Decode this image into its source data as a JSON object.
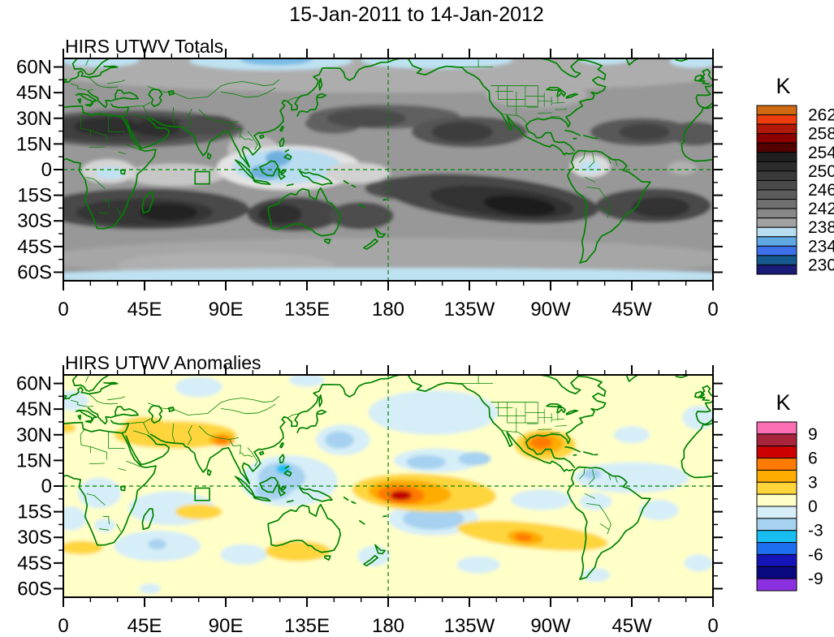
{
  "chart_data": {
    "type": "heatmap",
    "title": "15-Jan-2011 to 14-Jan-2012",
    "projection": "cylindrical equidistant, lon 0E..360E left-to-right, lat 65N..65S top-to-bottom",
    "lon_range": [
      0,
      360
    ],
    "lat_range": [
      -65,
      65
    ],
    "x_tick_labels": [
      "0",
      "45E",
      "90E",
      "135E",
      "180",
      "135W",
      "90W",
      "45W",
      "0"
    ],
    "y_tick_labels": [
      "60N",
      "45N",
      "30N",
      "15N",
      "0",
      "15S",
      "30S",
      "45S",
      "60S"
    ],
    "map_line_color": "#008200",
    "grid": {
      "equator_dashed": true,
      "dateline_dashed": true
    },
    "target_box_lonlat": {
      "lon_min": 73,
      "lon_max": 81,
      "lat_min": -8.4,
      "lat_max": -1.2
    },
    "feature_format": "ellipse: [lon_deg_east, lat_deg, rx_deg_lon, ry_deg_lat, fill_color, rotation_deg(optional)] - approximate contour-fill regions read from the plot",
    "panels": [
      {
        "title": "HIRS UTWV Totals",
        "units": "K",
        "colorbar": {
          "title": "K",
          "tick_labels": [
            "262",
            "258",
            "254",
            "250",
            "246",
            "242",
            "238",
            "234",
            "230"
          ],
          "k_per_box": 2,
          "box_colors": [
            "#D06A12",
            "#EE3D0C",
            "#B21807",
            "#8C0000",
            "#520000",
            "#1F1F1F",
            "#2C2C2C",
            "#3A3A3A",
            "#4A4A4A",
            "#5C5C5C",
            "#707070",
            "#878787",
            "#A1A1A1",
            "#B9DDF0",
            "#5FA8E2",
            "#3C6FE8",
            "#16598E",
            "#1A1A78"
          ]
        },
        "background_color": "#989898",
        "features": [
          [
            180,
            57,
            190,
            12,
            "#ADADAD"
          ],
          [
            180,
            -52,
            190,
            12,
            "#A6A6A6"
          ],
          [
            90,
            -56,
            60,
            8,
            "#AFAFAF"
          ],
          [
            262,
            44,
            28,
            8,
            "#ACACAC"
          ],
          [
            105,
            12,
            14,
            8,
            "#BDBDBD"
          ],
          [
            20,
            64,
            22,
            4,
            "#BFE2F2"
          ],
          [
            115,
            63.5,
            45,
            5.5,
            "#BFE2F2"
          ],
          [
            118,
            64.5,
            20,
            3.5,
            "#79B9E6"
          ],
          [
            207,
            64,
            42,
            5,
            "#BFE2F2"
          ],
          [
            300,
            64.5,
            14,
            3,
            "#BFE2F2"
          ],
          [
            350,
            63.5,
            14,
            4,
            "#BFE2F2"
          ],
          [
            180,
            -62.5,
            200,
            5,
            "#BFE2F2"
          ],
          [
            38,
            24,
            62,
            11,
            "#5A5A5A"
          ],
          [
            33,
            24,
            46,
            8.5,
            "#404040"
          ],
          [
            24,
            25,
            18,
            5.5,
            "#2E2E2E"
          ],
          [
            52,
            24.5,
            13,
            5,
            "#2E2E2E"
          ],
          [
            80,
            26,
            16,
            6,
            "#4C4C4C"
          ],
          [
            350,
            21,
            15,
            7,
            "#585858"
          ],
          [
            150,
            27,
            16,
            6,
            "#606060"
          ],
          [
            178,
            31,
            42,
            7,
            "#606060"
          ],
          [
            168,
            30,
            22,
            5.5,
            "#4C4C4C"
          ],
          [
            225,
            22,
            32,
            9,
            "#545454"
          ],
          [
            221,
            22,
            17,
            6,
            "#3C3C3C"
          ],
          [
            320,
            22,
            28,
            8,
            "#585858"
          ],
          [
            322,
            22,
            14,
            5,
            "#424242"
          ],
          [
            45,
            -23,
            58,
            12,
            "#4A4A4A"
          ],
          [
            45,
            -25,
            38,
            8,
            "#343434"
          ],
          [
            58,
            -25,
            16,
            5,
            "#242424"
          ],
          [
            128,
            -26,
            26,
            10,
            "#444444"
          ],
          [
            120,
            -26,
            12,
            6,
            "#2E2E2E"
          ],
          [
            165,
            -27,
            18,
            8,
            "#4E4E4E"
          ],
          [
            195,
            -11,
            28,
            7,
            "#505050"
          ],
          [
            237,
            -17,
            60,
            13,
            "#474747",
            6
          ],
          [
            243,
            -19,
            40,
            8.5,
            "#303030",
            6
          ],
          [
            253,
            -21,
            20,
            5.5,
            "#1E1E1E",
            6
          ],
          [
            327,
            -21,
            32,
            10,
            "#484848"
          ],
          [
            331,
            -22,
            16,
            6,
            "#303030"
          ],
          [
            62,
            -3,
            28,
            6.5,
            "#C6C6C6"
          ],
          [
            25,
            -1,
            15,
            7,
            "#D4D4D4"
          ],
          [
            26,
            -2,
            8,
            3.5,
            "#BFE2F2"
          ],
          [
            125,
            1,
            40,
            13,
            "#E3E3E3"
          ],
          [
            124,
            2,
            30,
            10,
            "#B9DDF0"
          ],
          [
            112,
            -1.5,
            9,
            4.5,
            "#6FB0DF"
          ],
          [
            119,
            6.5,
            7,
            4.5,
            "#6FB0DF"
          ],
          [
            163,
            -2,
            18,
            6,
            "#D2D2D2"
          ],
          [
            292,
            2,
            11,
            6.5,
            "#DCDCDC"
          ],
          [
            292,
            1.5,
            6,
            3.5,
            "#BFE2F2"
          ],
          [
            343,
            1,
            8,
            4,
            "#B0B0B0"
          ]
        ]
      },
      {
        "title": "HIRS UTWV Anomalies",
        "units": "K",
        "colorbar": {
          "title": "K",
          "tick_labels": [
            "9",
            "6",
            "3",
            "0",
            "-3",
            "-6",
            "-9"
          ],
          "k_per_box": 1.5,
          "box_colors": [
            "#FA6EB4",
            "#A8243A",
            "#CC0000",
            "#FF7A00",
            "#FFAC00",
            "#FFD53C",
            "#FFFFC8",
            "#D6EEF8",
            "#A6D1F0",
            "#18BEF2",
            "#1E6EF0",
            "#1414B8",
            "#0A0A80",
            "#8A30E0"
          ]
        },
        "background_color": "#FFFFC8",
        "features": [
          [
            205,
            43,
            36,
            13,
            "#D6EEF8"
          ],
          [
            75,
            58,
            13,
            6,
            "#D6EEF8"
          ],
          [
            135,
            62,
            10,
            4,
            "#D6EEF8"
          ],
          [
            5,
            50,
            9,
            6,
            "#D6EEF8"
          ],
          [
            352,
            40,
            9,
            7,
            "#D6EEF8"
          ],
          [
            315,
            30,
            10,
            5,
            "#D6EEF8"
          ],
          [
            155,
            27,
            15,
            9,
            "#D6EEF8"
          ],
          [
            153,
            27,
            8,
            5,
            "#A6D1F0"
          ],
          [
            207,
            15,
            24,
            7,
            "#D6EEF8"
          ],
          [
            201,
            14,
            11,
            4,
            "#A6D1F0"
          ],
          [
            228,
            16,
            9,
            4,
            "#A6D1F0"
          ],
          [
            125,
            3,
            27,
            15,
            "#D6EEF8"
          ],
          [
            121,
            5,
            13,
            9,
            "#A6D1F0"
          ],
          [
            116,
            -3,
            10,
            5,
            "#A6D1F0"
          ],
          [
            122,
            10,
            4,
            2.8,
            "#18BEF2"
          ],
          [
            60,
            -13,
            24,
            10,
            "#D6EEF8"
          ],
          [
            20,
            -4,
            12,
            9,
            "#D6EEF8"
          ],
          [
            4,
            -19,
            9,
            7,
            "#D6EEF8"
          ],
          [
            23,
            -23,
            6,
            4,
            "#D6EEF8"
          ],
          [
            52,
            -35,
            24,
            9,
            "#D6EEF8"
          ],
          [
            52,
            -34,
            5,
            3,
            "#A6D1F0"
          ],
          [
            315,
            5,
            32,
            9,
            "#D6EEF8"
          ],
          [
            293,
            7,
            5,
            3,
            "#A6D1F0"
          ],
          [
            205,
            -19,
            25,
            10,
            "#D6EEF8"
          ],
          [
            205,
            -19,
            17,
            6.5,
            "#A6D1F0"
          ],
          [
            265,
            -8,
            17,
            6,
            "#D6EEF8"
          ],
          [
            295,
            -9,
            9,
            5,
            "#D6EEF8"
          ],
          [
            330,
            -14,
            11,
            6,
            "#D6EEF8"
          ],
          [
            100,
            -40,
            13,
            6,
            "#D6EEF8"
          ],
          [
            172,
            -41,
            9,
            6,
            "#D6EEF8"
          ],
          [
            48,
            -60,
            6,
            3,
            "#D6EEF8"
          ],
          [
            230,
            -46,
            12,
            5,
            "#D6EEF8"
          ],
          [
            295,
            -52,
            8,
            4,
            "#D6EEF8"
          ],
          [
            352,
            -45,
            8,
            5,
            "#D6EEF8"
          ],
          [
            62,
            30,
            34,
            8,
            "#FFD53C"
          ],
          [
            45,
            36,
            12,
            4.5,
            "#FFD53C"
          ],
          [
            88,
            27,
            7,
            4,
            "#FFAC00"
          ],
          [
            88,
            27,
            3.5,
            2,
            "#FF7A00"
          ],
          [
            2,
            34,
            5,
            3,
            "#FFD53C"
          ],
          [
            200,
            -4,
            40,
            11,
            "#FFD53C",
            3
          ],
          [
            192,
            -4,
            23,
            7.5,
            "#FFAC00",
            3
          ],
          [
            187,
            -5,
            13,
            5.5,
            "#FF7A00",
            3
          ],
          [
            187,
            -5.5,
            6,
            2.8,
            "#C00000"
          ],
          [
            267,
            24,
            17,
            9,
            "#FFD53C"
          ],
          [
            266,
            25,
            11,
            6,
            "#FFAC00"
          ],
          [
            265,
            25.5,
            6,
            3.5,
            "#FF7A00"
          ],
          [
            260,
            -29,
            42,
            7.5,
            "#FFD53C",
            6
          ],
          [
            256,
            -30,
            10,
            4,
            "#FFAC00",
            6
          ],
          [
            255,
            -30,
            5,
            2.2,
            "#FF7A00",
            6
          ],
          [
            75,
            -15,
            13,
            4.5,
            "#FFD53C"
          ],
          [
            130,
            -38,
            18,
            6,
            "#FFD53C"
          ],
          [
            10,
            -36,
            12,
            4,
            "#FFD53C"
          ]
        ]
      }
    ]
  }
}
